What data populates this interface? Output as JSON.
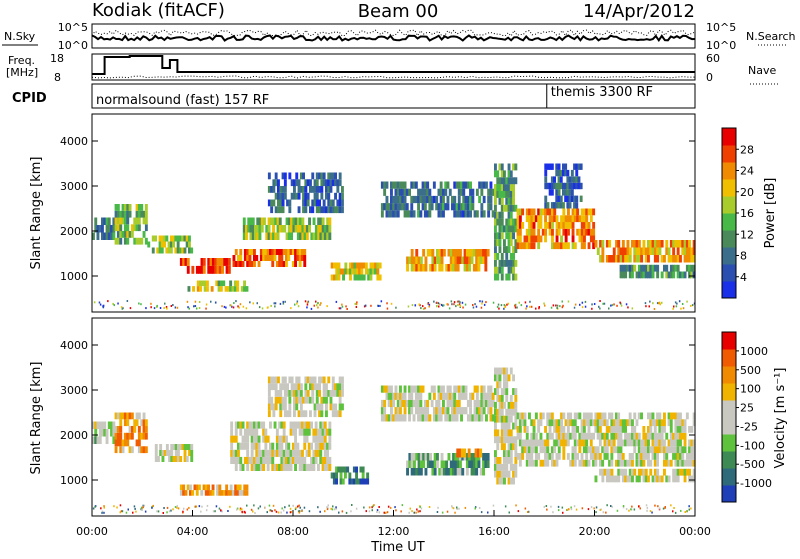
{
  "header": {
    "station": "Kodiak (fitACF)",
    "beam": "Beam 00",
    "date": "14/Apr/2012"
  },
  "top_panels": {
    "nsky_label": "N.Sky",
    "nsearch_label": "N.Search",
    "nsky_ticks": [
      "10^5",
      "10^0"
    ],
    "freq_label_1": "Freq.",
    "freq_label_2": "[MHz]",
    "freq_ticks": [
      "18",
      "8"
    ],
    "nave_label": "Nave",
    "nave_ticks": [
      "60",
      "0"
    ],
    "cpid_label": "CPID",
    "cpid_segments": [
      {
        "name": "normalsound (fast) 157 RF",
        "start_hour": 0
      },
      {
        "name": "themis 3300 RF",
        "start_hour": 18.1
      }
    ]
  },
  "chart_data": [
    {
      "type": "heatmap",
      "title": "Power",
      "ylabel": "Slant Range [km]",
      "yticks": [
        "4000",
        "3000",
        "2000",
        "1000"
      ],
      "ylim": [
        200,
        4600
      ],
      "xlim_hours": [
        0,
        24
      ],
      "colorbar_label": "Power [dB]",
      "colorbar_ticks": [
        "28",
        "24",
        "20",
        "16",
        "12",
        "8",
        "4"
      ],
      "colors": [
        "#1a2fe8",
        "#2a4fb0",
        "#3b6e8a",
        "#4a8a5a",
        "#48b848",
        "#a8cc2c",
        "#f0c000",
        "#f08a00",
        "#f04000",
        "#e80000"
      ],
      "bands": [
        {
          "t": [
            0.0,
            0.9
          ],
          "lo": 1800,
          "hi": 2300,
          "level": 0.3
        },
        {
          "t": [
            0.9,
            2.2
          ],
          "lo": 1700,
          "hi": 2600,
          "level": 0.45
        },
        {
          "t": [
            2.2,
            4.0
          ],
          "lo": 1500,
          "hi": 1900,
          "level": 0.5
        },
        {
          "t": [
            3.5,
            5.5
          ],
          "lo": 1050,
          "hi": 1400,
          "level": 0.9
        },
        {
          "t": [
            3.8,
            6.2
          ],
          "lo": 650,
          "hi": 900,
          "level": 0.55
        },
        {
          "t": [
            5.5,
            8.5
          ],
          "lo": 1200,
          "hi": 1600,
          "level": 0.8
        },
        {
          "t": [
            6.0,
            9.5
          ],
          "lo": 1800,
          "hi": 2300,
          "level": 0.5
        },
        {
          "t": [
            7.0,
            10.0
          ],
          "lo": 2400,
          "hi": 3300,
          "level": 0.2
        },
        {
          "t": [
            9.5,
            11.5
          ],
          "lo": 900,
          "hi": 1300,
          "level": 0.6
        },
        {
          "t": [
            11.5,
            16.0
          ],
          "lo": 2300,
          "hi": 3100,
          "level": 0.25
        },
        {
          "t": [
            12.5,
            15.8
          ],
          "lo": 1100,
          "hi": 1600,
          "level": 0.7
        },
        {
          "t": [
            16.0,
            16.9
          ],
          "lo": 900,
          "hi": 3500,
          "level": 0.4
        },
        {
          "t": [
            16.9,
            20.0
          ],
          "lo": 1600,
          "hi": 2500,
          "level": 0.75
        },
        {
          "t": [
            18.0,
            19.5
          ],
          "lo": 2500,
          "hi": 3500,
          "level": 0.2
        },
        {
          "t": [
            20.0,
            24.0
          ],
          "lo": 1300,
          "hi": 1800,
          "level": 0.7
        },
        {
          "t": [
            21.0,
            24.0
          ],
          "lo": 950,
          "hi": 1250,
          "level": 0.35
        }
      ]
    },
    {
      "type": "heatmap",
      "title": "Velocity",
      "xlabel": "Time UT",
      "ylabel": "Slant Range [km]",
      "yticks": [
        "4000",
        "3000",
        "2000",
        "1000"
      ],
      "ylim": [
        200,
        4600
      ],
      "xlim_hours": [
        0,
        24
      ],
      "xticks": [
        "00:00",
        "04:00",
        "08:00",
        "12:00",
        "16:00",
        "20:00",
        "00:00"
      ],
      "colorbar_label": "Velocity [m s⁻¹]",
      "colorbar_ticks": [
        "1000",
        "500",
        "100",
        "25",
        "-25",
        "-100",
        "-500",
        "-1000"
      ],
      "colors": [
        "#1f3fb8",
        "#2f6a7a",
        "#3e8a55",
        "#5ec23c",
        "#c8c8c0",
        "#c8c8c0",
        "#f0b400",
        "#f08a00",
        "#f05a00",
        "#e80000"
      ],
      "bands": [
        {
          "t": [
            0.0,
            0.9
          ],
          "lo": 1800,
          "hi": 2300,
          "level": 0.45
        },
        {
          "t": [
            0.9,
            2.2
          ],
          "lo": 1600,
          "hi": 2500,
          "level": 0.7
        },
        {
          "t": [
            2.5,
            4.0
          ],
          "lo": 1400,
          "hi": 1800,
          "level": 0.5
        },
        {
          "t": [
            3.5,
            6.2
          ],
          "lo": 650,
          "hi": 900,
          "level": 0.72
        },
        {
          "t": [
            5.5,
            9.5
          ],
          "lo": 1200,
          "hi": 2300,
          "level": 0.5
        },
        {
          "t": [
            7.0,
            10.0
          ],
          "lo": 2400,
          "hi": 3300,
          "level": 0.5
        },
        {
          "t": [
            9.5,
            11.0
          ],
          "lo": 900,
          "hi": 1300,
          "level": 0.2
        },
        {
          "t": [
            11.5,
            16.0
          ],
          "lo": 2300,
          "hi": 3100,
          "level": 0.5
        },
        {
          "t": [
            12.5,
            15.8
          ],
          "lo": 1100,
          "hi": 1600,
          "level": 0.3
        },
        {
          "t": [
            14.5,
            15.5
          ],
          "lo": 1500,
          "hi": 1700,
          "level": 0.8
        },
        {
          "t": [
            16.0,
            16.9
          ],
          "lo": 900,
          "hi": 3500,
          "level": 0.5
        },
        {
          "t": [
            16.9,
            24.0
          ],
          "lo": 1300,
          "hi": 2500,
          "level": 0.5
        },
        {
          "t": [
            20.0,
            24.0
          ],
          "lo": 950,
          "hi": 1250,
          "level": 0.5
        }
      ]
    }
  ]
}
